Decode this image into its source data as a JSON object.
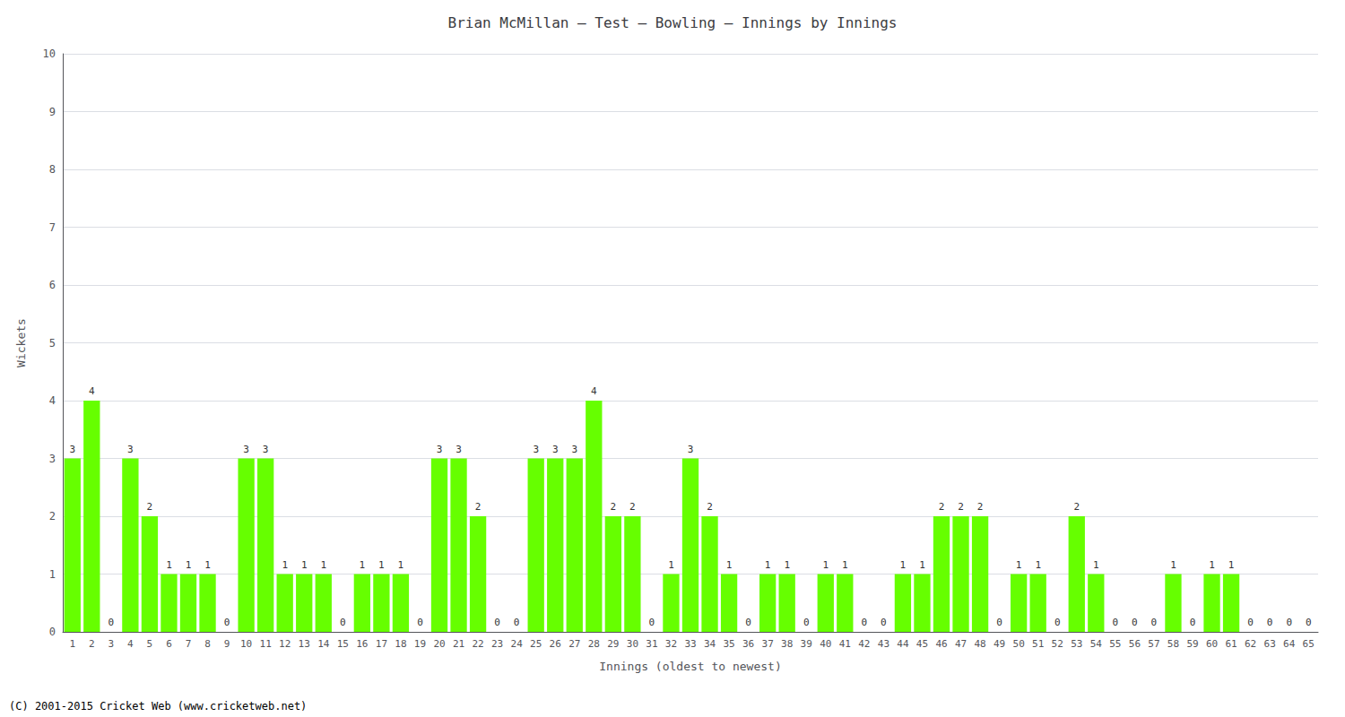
{
  "chart_data": {
    "type": "bar",
    "title": "Brian McMillan – Test – Bowling – Innings by Innings",
    "xlabel": "Innings (oldest to newest)",
    "ylabel": "Wickets",
    "categories": [
      "1",
      "2",
      "3",
      "4",
      "5",
      "6",
      "7",
      "8",
      "9",
      "10",
      "11",
      "12",
      "13",
      "14",
      "15",
      "16",
      "17",
      "18",
      "19",
      "20",
      "21",
      "22",
      "23",
      "24",
      "25",
      "26",
      "27",
      "28",
      "29",
      "30",
      "31",
      "32",
      "33",
      "34",
      "35",
      "36",
      "37",
      "38",
      "39",
      "40",
      "41",
      "42",
      "43",
      "44",
      "45",
      "46",
      "47",
      "48",
      "49",
      "50",
      "51",
      "52",
      "53",
      "54",
      "55",
      "56",
      "57",
      "58",
      "59",
      "60",
      "61",
      "62",
      "63",
      "64",
      "65"
    ],
    "values": [
      3,
      4,
      0,
      3,
      2,
      1,
      1,
      1,
      0,
      3,
      3,
      1,
      1,
      1,
      0,
      1,
      1,
      1,
      0,
      3,
      3,
      2,
      0,
      0,
      3,
      3,
      3,
      4,
      2,
      2,
      0,
      1,
      3,
      2,
      1,
      0,
      1,
      1,
      0,
      1,
      1,
      0,
      0,
      1,
      1,
      2,
      2,
      2,
      0,
      1,
      1,
      0,
      2,
      1,
      0,
      0,
      0,
      1,
      0,
      1,
      1,
      0,
      0,
      0,
      0
    ],
    "color": "#66ff00",
    "ylim": [
      0,
      10
    ],
    "yticks": [
      0,
      1,
      2,
      3,
      4,
      5,
      6,
      7,
      8,
      9,
      10
    ],
    "grid": true,
    "data_labels": true,
    "annotations": [
      "(C) 2001-2015 Cricket Web (www.cricketweb.net)"
    ]
  }
}
